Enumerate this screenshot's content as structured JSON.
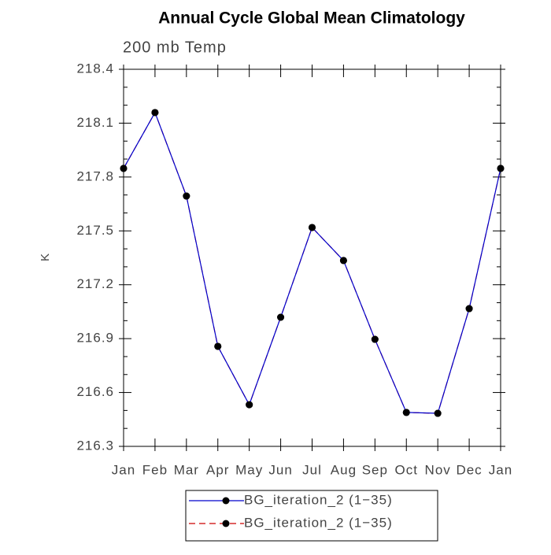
{
  "chart_data": {
    "type": "line",
    "title": "Annual Cycle Global Mean Climatology",
    "subtitle": "200 mb Temp",
    "y_label": "K",
    "categories": [
      "Jan",
      "Feb",
      "Mar",
      "Apr",
      "May",
      "Jun",
      "Jul",
      "Aug",
      "Sep",
      "Oct",
      "Nov",
      "Dec",
      "Jan"
    ],
    "series": [
      {
        "name": "BG_iteration_2 (1−35)",
        "color": "#0000cc",
        "linestyle": "solid",
        "marker_color": "#000000",
        "values": [
          217.848,
          218.159,
          217.694,
          216.857,
          216.532,
          217.019,
          217.519,
          217.335,
          216.896,
          216.489,
          216.484,
          217.067,
          217.848
        ]
      },
      {
        "name": "BG_iteration_2 (1−35)",
        "color": "#cc0000",
        "linestyle": "dashed",
        "marker_color": "#000000",
        "values": [
          217.848,
          218.159,
          217.694,
          216.857,
          216.532,
          217.019,
          217.519,
          217.335,
          216.896,
          216.489,
          216.484,
          217.067,
          217.848
        ]
      }
    ],
    "ylim": [
      216.3,
      218.4
    ],
    "yticks": [
      216.3,
      216.6,
      216.9,
      217.2,
      217.5,
      217.8,
      218.1,
      218.4
    ],
    "yticks_minor": [
      216.4,
      216.5,
      216.7,
      216.8,
      217.0,
      217.1,
      217.3,
      217.4,
      217.6,
      217.7,
      217.9,
      218.0,
      218.2,
      218.3
    ],
    "grid": false,
    "legend": "bottom"
  }
}
